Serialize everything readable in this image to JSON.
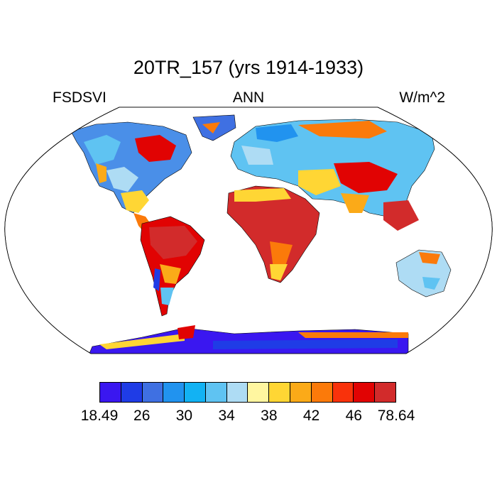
{
  "title": "20TR_157 (yrs 1914-1933)",
  "left_label": "FSDSVI",
  "center_label": "ANN",
  "right_label": "W/m^2",
  "colorbar": {
    "colors": [
      "#3a17f0",
      "#1f3ce6",
      "#3f70e2",
      "#2193ef",
      "#12b2f3",
      "#5fc3f2",
      "#aedcf4",
      "#fff6a0",
      "#ffd634",
      "#fbaa18",
      "#fb7a0a",
      "#f9320b",
      "#e10303",
      "#d22b2b"
    ],
    "tick_labels": [
      "18.49",
      "26",
      "30",
      "34",
      "38",
      "42",
      "46",
      "78.64"
    ]
  },
  "map_layer_names": [
    "ocean-background",
    "north-america",
    "greenland",
    "south-america",
    "europe-asia",
    "africa",
    "australia",
    "antarctica"
  ]
}
